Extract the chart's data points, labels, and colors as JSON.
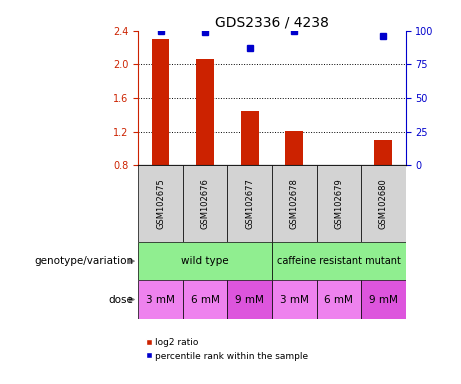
{
  "title": "GDS2336 / 4238",
  "samples": [
    "GSM102675",
    "GSM102676",
    "GSM102677",
    "GSM102678",
    "GSM102679",
    "GSM102680"
  ],
  "log2_ratio": [
    2.3,
    2.06,
    1.45,
    1.21,
    null,
    1.1
  ],
  "percentile_rank": [
    99.5,
    99.0,
    87.0,
    99.5,
    null,
    96.0
  ],
  "ylim_left": [
    0.8,
    2.4
  ],
  "ylim_right": [
    0,
    100
  ],
  "yticks_left": [
    0.8,
    1.2,
    1.6,
    2.0,
    2.4
  ],
  "yticks_right": [
    0,
    25,
    50,
    75,
    100
  ],
  "bar_color": "#cc2200",
  "dot_color": "#0000cc",
  "bar_baseline": 0.8,
  "genotype_color_wt": "#90ee90",
  "genotype_color_cr": "#90ee90",
  "dose_colors": [
    "#ee82ee",
    "#ee82ee",
    "#dd55dd",
    "#ee82ee",
    "#ee82ee",
    "#dd55dd"
  ],
  "dose_labels": [
    "3 mM",
    "6 mM",
    "9 mM",
    "3 mM",
    "6 mM",
    "9 mM"
  ],
  "sample_box_color": "#d3d3d3",
  "left_label_genotype": "genotype/variation",
  "left_label_dose": "dose",
  "legend_red_label": "log2 ratio",
  "legend_blue_label": "percentile rank within the sample",
  "title_fontsize": 10,
  "tick_fontsize": 7,
  "hgrid_values": [
    2.0,
    1.6,
    1.2
  ]
}
